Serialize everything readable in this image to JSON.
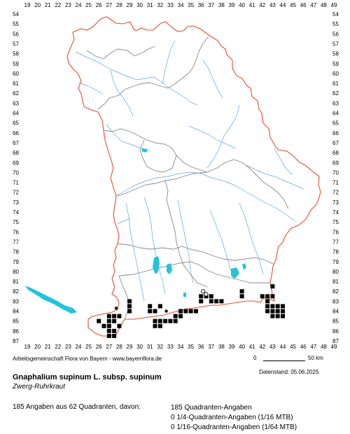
{
  "map": {
    "x_grid_labels": [
      "19",
      "20",
      "21",
      "22",
      "23",
      "24",
      "25",
      "26",
      "27",
      "28",
      "29",
      "30",
      "31",
      "32",
      "33",
      "34",
      "35",
      "36",
      "37",
      "38",
      "39",
      "40",
      "41",
      "42",
      "43",
      "44",
      "45",
      "46",
      "47",
      "48",
      "49"
    ],
    "y_grid_labels": [
      "54",
      "55",
      "56",
      "57",
      "58",
      "59",
      "60",
      "61",
      "62",
      "63",
      "64",
      "65",
      "66",
      "67",
      "68",
      "69",
      "70",
      "71",
      "72",
      "73",
      "74",
      "75",
      "76",
      "77",
      "78",
      "79",
      "80",
      "81",
      "82",
      "83",
      "84",
      "85",
      "86",
      "87"
    ],
    "colors": {
      "state_border": "#e05030",
      "district_border": "#888888",
      "rivers": "#5aa8e0",
      "lakes": "#22c4dc",
      "grid_labels": "#000000",
      "occurrence_marker": "#000000"
    },
    "occurrence_quadrants": [
      {
        "col": 26,
        "row": 85
      },
      {
        "col": 26.5,
        "row": 85.5
      },
      {
        "col": 27,
        "row": 84.5
      },
      {
        "col": 27,
        "row": 85
      },
      {
        "col": 27,
        "row": 85.5
      },
      {
        "col": 27,
        "row": 86
      },
      {
        "col": 27,
        "row": 86.5
      },
      {
        "col": 27.5,
        "row": 84.5
      },
      {
        "col": 27.5,
        "row": 85
      },
      {
        "col": 27.5,
        "row": 86
      },
      {
        "col": 27.5,
        "row": 86.5
      },
      {
        "col": 28,
        "row": 84.5
      },
      {
        "col": 28,
        "row": 85.5
      },
      {
        "col": 29,
        "row": 83
      },
      {
        "col": 29,
        "row": 83.5
      },
      {
        "col": 29,
        "row": 84
      },
      {
        "col": 31,
        "row": 83.5
      },
      {
        "col": 31,
        "row": 84
      },
      {
        "col": 31.5,
        "row": 84
      },
      {
        "col": 31.5,
        "row": 85
      },
      {
        "col": 31.5,
        "row": 85.5
      },
      {
        "col": 32,
        "row": 83.5
      },
      {
        "col": 32,
        "row": 85
      },
      {
        "col": 32,
        "row": 85.5
      },
      {
        "col": 32.5,
        "row": 85
      },
      {
        "col": 33,
        "row": 85
      },
      {
        "col": 33.5,
        "row": 84.5
      },
      {
        "col": 33.5,
        "row": 85
      },
      {
        "col": 34,
        "row": 84
      },
      {
        "col": 34,
        "row": 84.5
      },
      {
        "col": 34.5,
        "row": 84
      },
      {
        "col": 35,
        "row": 84
      },
      {
        "col": 35.5,
        "row": 84
      },
      {
        "col": 36,
        "row": 82.5
      },
      {
        "col": 36,
        "row": 83
      },
      {
        "col": 36.5,
        "row": 82.5
      },
      {
        "col": 37,
        "row": 82.5
      },
      {
        "col": 37,
        "row": 83
      },
      {
        "col": 37.5,
        "row": 83
      },
      {
        "col": 38,
        "row": 83
      },
      {
        "col": 40,
        "row": 82
      },
      {
        "col": 40,
        "row": 82.5
      },
      {
        "col": 42,
        "row": 82.5
      },
      {
        "col": 42.5,
        "row": 82.5
      },
      {
        "col": 42.5,
        "row": 83
      },
      {
        "col": 42.5,
        "row": 83.5
      },
      {
        "col": 42.5,
        "row": 84
      },
      {
        "col": 43,
        "row": 81.5
      },
      {
        "col": 43,
        "row": 82.5
      },
      {
        "col": 43,
        "row": 83.5
      },
      {
        "col": 43,
        "row": 84
      },
      {
        "col": 43,
        "row": 84.5
      },
      {
        "col": 43.5,
        "row": 83.5
      },
      {
        "col": 43.5,
        "row": 84
      },
      {
        "col": 43.5,
        "row": 84.5
      },
      {
        "col": 44,
        "row": 83.5
      },
      {
        "col": 44,
        "row": 84
      },
      {
        "col": 44,
        "row": 84.5
      }
    ],
    "dot_points": [
      {
        "col": 27.7,
        "row": 83.7
      },
      {
        "col": 32.6,
        "row": 84.0
      },
      {
        "col": 43.0,
        "row": 84.5
      }
    ],
    "open_circle_points": [
      {
        "col": 36.2,
        "row": 82.0
      },
      {
        "col": 36.5,
        "row": 82.3
      }
    ]
  },
  "scale": {
    "zero_label": "0",
    "end_label": "50 km"
  },
  "footer": {
    "credits": "Arbeitsgemeinschaft Flora von Bayern - www.bayernflora.de",
    "date": "Datenstand: 05.06.2025",
    "scientific_name": "Gnaphalium supinum L. subsp. supinum",
    "common_name": "Zwerg-Ruhrkraut",
    "summary": "185 Angaben aus 62 Quadranten, davon:",
    "breakdown": [
      "185 Quadranten-Angaben",
      "0 1/4-Quadranten-Angaben (1/16 MTB)",
      "0 1/16-Quadranten-Angaben (1/64 MTB)"
    ]
  }
}
